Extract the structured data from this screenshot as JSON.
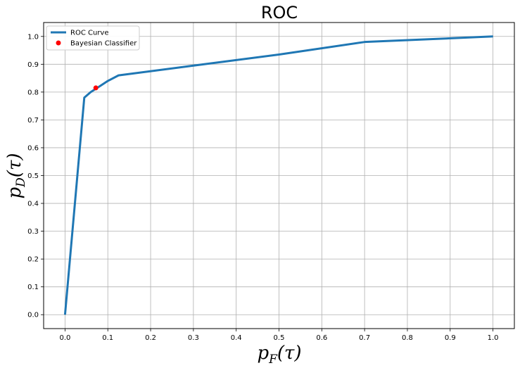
{
  "chart_data": {
    "type": "line",
    "title": "ROC",
    "xlabel": {
      "main": "p",
      "sub": "F",
      "arg": "(τ)"
    },
    "ylabel": {
      "main": "p",
      "sub": "D",
      "arg": "(τ)"
    },
    "xlim": [
      -0.05,
      1.05
    ],
    "ylim": [
      -0.05,
      1.05
    ],
    "xticks": [
      "0.0",
      "0.1",
      "0.2",
      "0.3",
      "0.4",
      "0.5",
      "0.6",
      "0.7",
      "0.8",
      "0.9",
      "1.0"
    ],
    "yticks": [
      "0.0",
      "0.1",
      "0.2",
      "0.3",
      "0.4",
      "0.5",
      "0.6",
      "0.7",
      "0.8",
      "0.9",
      "1.0"
    ],
    "grid": true,
    "legend_position": "top-left",
    "series": [
      {
        "name": "ROC Curve",
        "kind": "line",
        "color": "#1f77b4",
        "x": [
          0.0,
          0.045,
          0.06,
          0.08,
          0.1,
          0.125,
          0.3,
          0.5,
          0.7,
          1.0
        ],
        "y": [
          0.0,
          0.78,
          0.8,
          0.82,
          0.84,
          0.86,
          0.895,
          0.935,
          0.98,
          1.0
        ]
      },
      {
        "name": "Bayesian Classifier",
        "kind": "point",
        "color": "#ff0000",
        "x": [
          0.072
        ],
        "y": [
          0.815
        ]
      }
    ]
  }
}
